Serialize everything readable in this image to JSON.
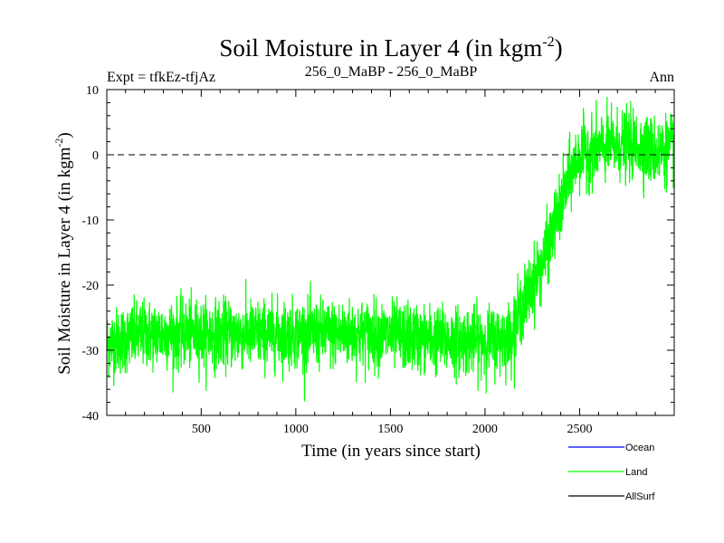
{
  "chart_data": {
    "type": "line",
    "title": {
      "main": "Soil Moisture in Layer 4 (in kgm",
      "superscript": "-2",
      "close": ")"
    },
    "subtitle_left": "Expt = tfkEz-tfjAz",
    "subtitle_center": "256_0_MaBP - 256_0_MaBP",
    "subtitle_right": "Ann",
    "xlabel": "Time (in years since start)",
    "ylabel": {
      "main": "Soil Moisture in Layer 4 (in kgm",
      "superscript": "-2",
      "close": ")"
    },
    "xlim": [
      1,
      3000
    ],
    "ylim": [
      -40,
      10
    ],
    "x_ticks": [
      500,
      1000,
      1500,
      2000,
      2500
    ],
    "y_ticks": [
      10,
      0,
      -10,
      -20,
      -30,
      -40
    ],
    "zero_line": 0,
    "series": [
      {
        "name": "Ocean",
        "color": "#0000ff",
        "values": []
      },
      {
        "name": "Land",
        "color": "#00ff00",
        "trend_x": [
          1,
          200,
          400,
          600,
          800,
          1000,
          1200,
          1400,
          1600,
          1800,
          1950,
          2050,
          2130,
          2200,
          2300,
          2400,
          2450,
          2500,
          2600,
          2700,
          2800,
          2900,
          3000
        ],
        "trend_y": [
          -29,
          -27.5,
          -27.5,
          -27.5,
          -27.5,
          -27.5,
          -27.5,
          -27.5,
          -28,
          -28.5,
          -28.5,
          -28.5,
          -28,
          -23,
          -17,
          -8,
          -3,
          0,
          1,
          1.5,
          1.5,
          0.5,
          1
        ],
        "noise_sd": 3.2
      },
      {
        "name": "AllSurf",
        "color": "#000000",
        "values": []
      }
    ],
    "legend_position": "bottom-right"
  }
}
